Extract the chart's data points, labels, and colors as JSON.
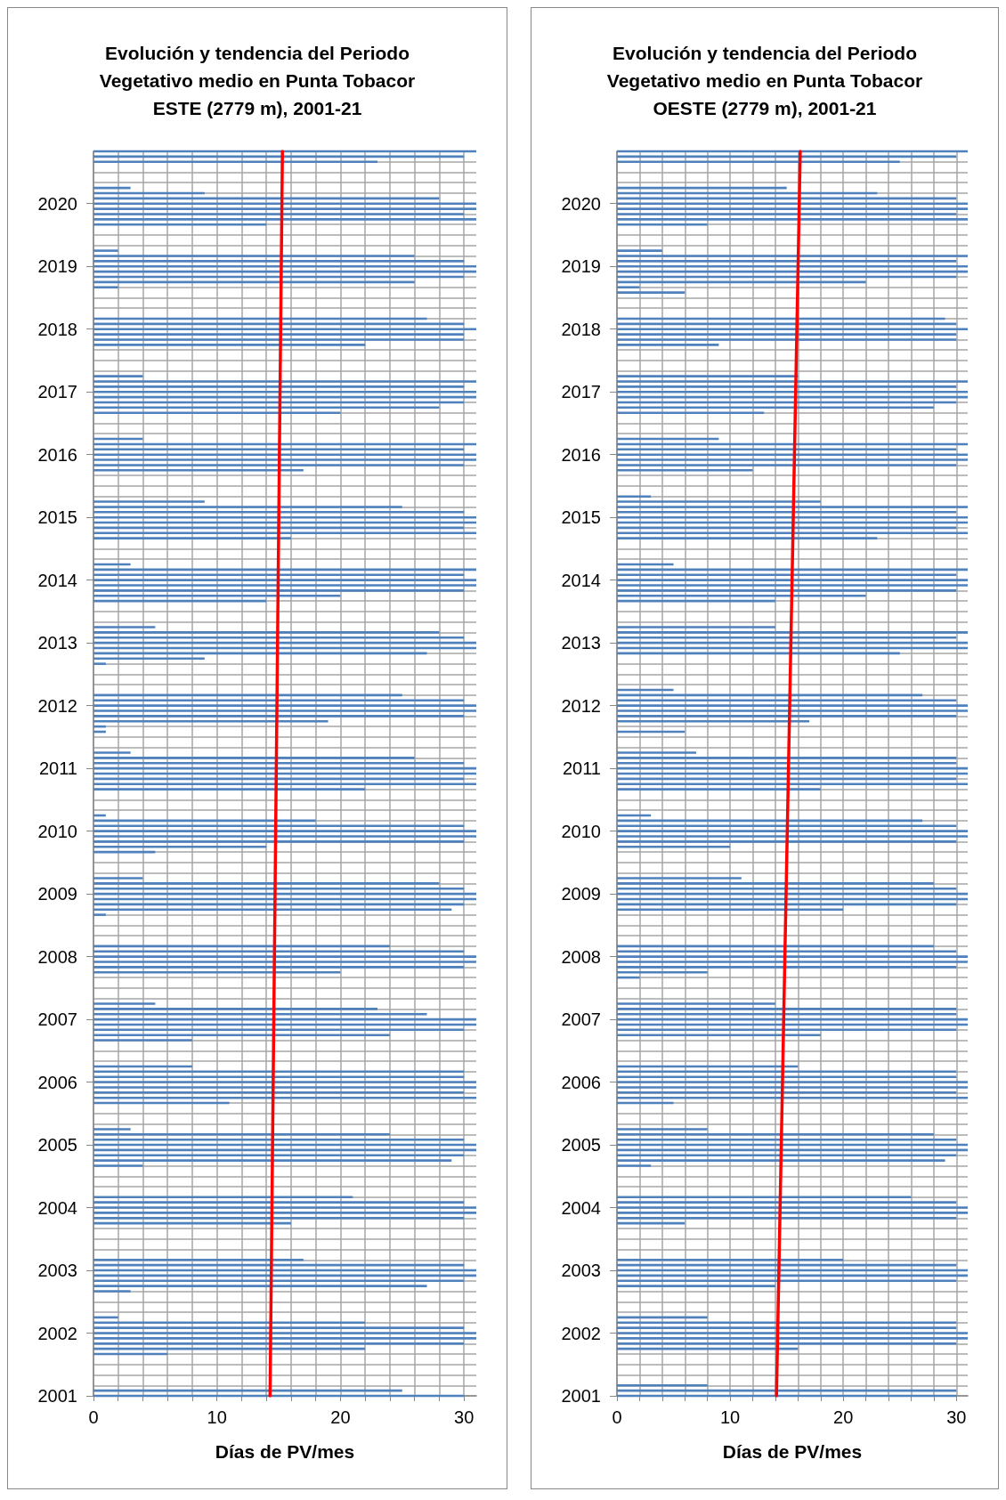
{
  "chart_data": [
    {
      "type": "bar",
      "orientation": "horizontal",
      "title": "Evolución y tendencia del Periodo\nVegetativo medio en Punta Tobacor\nESTE (2779 m), 2001-21",
      "xlabel": "Días de PV/mes",
      "grid": true,
      "xlim": [
        0,
        31
      ],
      "xticks": [
        0,
        {
          "value": 2,
          "label": null
        },
        {
          "value": 4,
          "label": null
        },
        {
          "value": 6,
          "label": null
        },
        {
          "value": 8,
          "label": null
        },
        10,
        {
          "value": 12,
          "label": null
        },
        {
          "value": 14,
          "label": null
        },
        {
          "value": 16,
          "label": null
        },
        {
          "value": 18,
          "label": null
        },
        20,
        {
          "value": 22,
          "label": null
        },
        {
          "value": 24,
          "label": null
        },
        {
          "value": 26,
          "label": null
        },
        {
          "value": 28,
          "label": null
        },
        30
      ],
      "categories": [
        null,
        null,
        null,
        null,
        null,
        null,
        null,
        null,
        null,
        null,
        "2020",
        null,
        null,
        null,
        null,
        null,
        null,
        null,
        null,
        null,
        null,
        null,
        "2019",
        null,
        null,
        null,
        null,
        null,
        null,
        null,
        null,
        null,
        null,
        null,
        "2018",
        null,
        null,
        null,
        null,
        null,
        null,
        null,
        null,
        null,
        null,
        null,
        "2017",
        null,
        null,
        null,
        null,
        null,
        null,
        null,
        null,
        null,
        null,
        null,
        "2016",
        null,
        null,
        null,
        null,
        null,
        null,
        null,
        null,
        null,
        null,
        null,
        "2015",
        null,
        null,
        null,
        null,
        null,
        null,
        null,
        null,
        null,
        null,
        null,
        "2014",
        null,
        null,
        null,
        null,
        null,
        null,
        null,
        null,
        null,
        null,
        null,
        "2013",
        null,
        null,
        null,
        null,
        null,
        null,
        null,
        null,
        null,
        null,
        null,
        "2012",
        null,
        null,
        null,
        null,
        null,
        null,
        null,
        null,
        null,
        null,
        null,
        "2011",
        null,
        null,
        null,
        null,
        null,
        null,
        null,
        null,
        null,
        null,
        null,
        "2010",
        null,
        null,
        null,
        null,
        null,
        null,
        null,
        null,
        null,
        null,
        null,
        "2009",
        null,
        null,
        null,
        null,
        null,
        null,
        null,
        null,
        null,
        null,
        null,
        "2008",
        null,
        null,
        null,
        null,
        null,
        null,
        null,
        null,
        null,
        null,
        null,
        "2007",
        null,
        null,
        null,
        null,
        null,
        null,
        null,
        null,
        null,
        null,
        null,
        "2006",
        null,
        null,
        null,
        null,
        null,
        null,
        null,
        null,
        null,
        null,
        null,
        "2005",
        null,
        null,
        null,
        null,
        null,
        null,
        null,
        null,
        null,
        null,
        null,
        "2004",
        null,
        null,
        null,
        null,
        null,
        null,
        null,
        null,
        null,
        null,
        null,
        "2003",
        null,
        null,
        null,
        null,
        null,
        null,
        null,
        null,
        null,
        null,
        null,
        "2002",
        null,
        null,
        null,
        null,
        null,
        null,
        null,
        null,
        null,
        null,
        null,
        "2001"
      ],
      "series": [
        {
          "color": "#4f81bd",
          "values": [
            31,
            30,
            23,
            0,
            0,
            0,
            0,
            3,
            9,
            28,
            31,
            31,
            30,
            31,
            14,
            0,
            0,
            0,
            0,
            2,
            26,
            30,
            31,
            31,
            30,
            26,
            2,
            0,
            0,
            0,
            0,
            0,
            27,
            30,
            31,
            30,
            30,
            22,
            0,
            0,
            0,
            0,
            0,
            4,
            31,
            30,
            31,
            31,
            30,
            28,
            20,
            0,
            0,
            0,
            0,
            4,
            31,
            30,
            31,
            31,
            30,
            17,
            0,
            0,
            0,
            0,
            0,
            9,
            25,
            30,
            31,
            31,
            30,
            31,
            16,
            0,
            0,
            0,
            0,
            3,
            31,
            30,
            31,
            31,
            30,
            20,
            14,
            0,
            0,
            0,
            0,
            5,
            28,
            30,
            31,
            31,
            27,
            9,
            1,
            0,
            0,
            0,
            0,
            0,
            25,
            30,
            31,
            31,
            30,
            19,
            1,
            1,
            0,
            0,
            0,
            3,
            26,
            30,
            31,
            31,
            30,
            31,
            22,
            0,
            0,
            0,
            0,
            1,
            18,
            30,
            31,
            31,
            30,
            14,
            5,
            0,
            0,
            0,
            0,
            4,
            28,
            30,
            31,
            31,
            30,
            29,
            1,
            0,
            0,
            0,
            0,
            0,
            24,
            30,
            31,
            31,
            30,
            20,
            0,
            0,
            0,
            0,
            0,
            5,
            23,
            27,
            31,
            31,
            30,
            24,
            8,
            0,
            0,
            0,
            0,
            8,
            30,
            30,
            31,
            31,
            30,
            31,
            11,
            0,
            0,
            0,
            0,
            3,
            24,
            30,
            31,
            31,
            30,
            29,
            4,
            0,
            0,
            0,
            0,
            0,
            21,
            30,
            31,
            31,
            30,
            16,
            0,
            0,
            0,
            0,
            0,
            0,
            17,
            30,
            31,
            31,
            30,
            27,
            3,
            0,
            0,
            0,
            0,
            2,
            22,
            30,
            31,
            31,
            30,
            22,
            6,
            0,
            0,
            0,
            0,
            0,
            0,
            25,
            30
          ]
        },
        {
          "type": "line",
          "color": "#ff0000",
          "values": [
            15.3,
            null,
            null,
            null,
            null,
            null,
            null,
            null,
            null,
            null,
            null,
            null,
            null,
            null,
            null,
            null,
            null,
            null,
            null,
            null,
            null,
            null,
            null,
            null,
            null,
            null,
            null,
            null,
            null,
            null,
            null,
            null,
            null,
            null,
            null,
            null,
            null,
            null,
            null,
            null,
            null,
            null,
            null,
            null,
            null,
            null,
            null,
            null,
            null,
            null,
            null,
            null,
            null,
            null,
            null,
            null,
            null,
            null,
            null,
            null,
            null,
            null,
            null,
            null,
            null,
            null,
            null,
            null,
            null,
            null,
            null,
            null,
            null,
            null,
            null,
            null,
            null,
            null,
            null,
            null,
            null,
            null,
            null,
            null,
            null,
            null,
            null,
            null,
            null,
            null,
            null,
            null,
            null,
            null,
            null,
            null,
            null,
            null,
            null,
            null,
            null,
            null,
            null,
            null,
            null,
            null,
            null,
            null,
            null,
            null,
            null,
            null,
            null,
            null,
            null,
            null,
            null,
            null,
            null,
            null,
            null,
            null,
            null,
            null,
            null,
            null,
            null,
            null,
            null,
            null,
            null,
            null,
            null,
            null,
            null,
            null,
            null,
            null,
            null,
            null,
            null,
            null,
            null,
            null,
            null,
            null,
            null,
            null,
            null,
            null,
            null,
            null,
            null,
            null,
            null,
            null,
            null,
            null,
            null,
            null,
            null,
            null,
            null,
            null,
            null,
            null,
            null,
            null,
            null,
            null,
            null,
            null,
            null,
            null,
            null,
            null,
            null,
            null,
            null,
            null,
            null,
            null,
            null,
            null,
            null,
            null,
            null,
            null,
            null,
            null,
            null,
            null,
            null,
            null,
            null,
            null,
            null,
            null,
            null,
            null,
            null,
            null,
            null,
            null,
            null,
            null,
            null,
            null,
            null,
            null,
            null,
            null,
            null,
            null,
            null,
            null,
            null,
            null,
            null,
            null,
            null,
            null,
            null,
            null,
            null,
            null,
            null,
            null,
            null,
            null,
            null,
            null,
            null,
            null,
            null,
            null,
            null,
            null,
            14.3
          ]
        }
      ],
      "marker": "none"
    },
    {
      "type": "bar",
      "orientation": "horizontal",
      "title": "Evolución y tendencia del Periodo\nVegetativo medio en Punta Tobacor\nOESTE (2779 m), 2001-21",
      "xlabel": "Días de PV/mes",
      "grid": true,
      "xlim": [
        0,
        31
      ],
      "xticks": [
        0,
        {
          "value": 2,
          "label": null
        },
        {
          "value": 4,
          "label": null
        },
        {
          "value": 6,
          "label": null
        },
        {
          "value": 8,
          "label": null
        },
        10,
        {
          "value": 12,
          "label": null
        },
        {
          "value": 14,
          "label": null
        },
        {
          "value": 16,
          "label": null
        },
        {
          "value": 18,
          "label": null
        },
        20,
        {
          "value": 22,
          "label": null
        },
        {
          "value": 24,
          "label": null
        },
        {
          "value": 26,
          "label": null
        },
        {
          "value": 28,
          "label": null
        },
        30
      ],
      "categories": [
        null,
        null,
        null,
        null,
        null,
        null,
        null,
        null,
        null,
        null,
        "2020",
        null,
        null,
        null,
        null,
        null,
        null,
        null,
        null,
        null,
        null,
        null,
        "2019",
        null,
        null,
        null,
        null,
        null,
        null,
        null,
        null,
        null,
        null,
        null,
        "2018",
        null,
        null,
        null,
        null,
        null,
        null,
        null,
        null,
        null,
        null,
        null,
        "2017",
        null,
        null,
        null,
        null,
        null,
        null,
        null,
        null,
        null,
        null,
        null,
        "2016",
        null,
        null,
        null,
        null,
        null,
        null,
        null,
        null,
        null,
        null,
        null,
        "2015",
        null,
        null,
        null,
        null,
        null,
        null,
        null,
        null,
        null,
        null,
        null,
        "2014",
        null,
        null,
        null,
        null,
        null,
        null,
        null,
        null,
        null,
        null,
        null,
        "2013",
        null,
        null,
        null,
        null,
        null,
        null,
        null,
        null,
        null,
        null,
        null,
        "2012",
        null,
        null,
        null,
        null,
        null,
        null,
        null,
        null,
        null,
        null,
        null,
        "2011",
        null,
        null,
        null,
        null,
        null,
        null,
        null,
        null,
        null,
        null,
        null,
        "2010",
        null,
        null,
        null,
        null,
        null,
        null,
        null,
        null,
        null,
        null,
        null,
        "2009",
        null,
        null,
        null,
        null,
        null,
        null,
        null,
        null,
        null,
        null,
        null,
        "2008",
        null,
        null,
        null,
        null,
        null,
        null,
        null,
        null,
        null,
        null,
        null,
        "2007",
        null,
        null,
        null,
        null,
        null,
        null,
        null,
        null,
        null,
        null,
        null,
        "2006",
        null,
        null,
        null,
        null,
        null,
        null,
        null,
        null,
        null,
        null,
        null,
        "2005",
        null,
        null,
        null,
        null,
        null,
        null,
        null,
        null,
        null,
        null,
        null,
        "2004",
        null,
        null,
        null,
        null,
        null,
        null,
        null,
        null,
        null,
        null,
        null,
        "2003",
        null,
        null,
        null,
        null,
        null,
        null,
        null,
        null,
        null,
        null,
        null,
        "2002",
        null,
        null,
        null,
        null,
        null,
        null,
        null,
        null,
        null,
        null,
        null,
        "2001"
      ],
      "series": [
        {
          "color": "#4f81bd",
          "values": [
            31,
            30,
            25,
            0,
            0,
            0,
            0,
            15,
            23,
            30,
            31,
            31,
            30,
            31,
            8,
            0,
            0,
            0,
            0,
            4,
            31,
            30,
            31,
            31,
            30,
            22,
            2,
            6,
            0,
            0,
            0,
            0,
            29,
            30,
            31,
            30,
            30,
            9,
            0,
            0,
            0,
            0,
            0,
            16,
            31,
            30,
            31,
            31,
            30,
            28,
            13,
            0,
            0,
            0,
            0,
            9,
            31,
            30,
            31,
            31,
            30,
            12,
            0,
            0,
            0,
            0,
            3,
            18,
            31,
            30,
            31,
            31,
            30,
            31,
            23,
            0,
            0,
            0,
            0,
            5,
            31,
            30,
            31,
            31,
            30,
            22,
            14,
            0,
            0,
            0,
            0,
            14,
            31,
            30,
            31,
            31,
            25,
            0,
            0,
            0,
            0,
            0,
            0,
            5,
            27,
            30,
            31,
            31,
            30,
            17,
            0,
            6,
            0,
            0,
            0,
            7,
            30,
            30,
            31,
            31,
            30,
            31,
            18,
            0,
            0,
            0,
            0,
            3,
            27,
            30,
            31,
            31,
            30,
            10,
            0,
            0,
            0,
            0,
            0,
            11,
            28,
            30,
            31,
            31,
            30,
            20,
            0,
            0,
            0,
            0,
            0,
            0,
            28,
            30,
            31,
            31,
            30,
            8,
            2,
            0,
            0,
            0,
            0,
            14,
            30,
            30,
            31,
            31,
            30,
            18,
            0,
            0,
            0,
            0,
            0,
            16,
            30,
            30,
            31,
            31,
            30,
            31,
            5,
            0,
            0,
            0,
            0,
            8,
            28,
            30,
            31,
            31,
            30,
            29,
            3,
            0,
            0,
            0,
            0,
            0,
            26,
            30,
            31,
            31,
            30,
            6,
            0,
            0,
            0,
            0,
            0,
            0,
            20,
            30,
            31,
            31,
            30,
            14,
            0,
            0,
            0,
            0,
            0,
            8,
            30,
            30,
            31,
            31,
            30,
            16,
            0,
            0,
            0,
            0,
            0,
            0,
            8,
            30,
            30
          ]
        },
        {
          "type": "line",
          "color": "#ff0000",
          "values": [
            16.2,
            null,
            null,
            null,
            null,
            null,
            null,
            null,
            null,
            null,
            null,
            null,
            null,
            null,
            null,
            null,
            null,
            null,
            null,
            null,
            null,
            null,
            null,
            null,
            null,
            null,
            null,
            null,
            null,
            null,
            null,
            null,
            null,
            null,
            null,
            null,
            null,
            null,
            null,
            null,
            null,
            null,
            null,
            null,
            null,
            null,
            null,
            null,
            null,
            null,
            null,
            null,
            null,
            null,
            null,
            null,
            null,
            null,
            null,
            null,
            null,
            null,
            null,
            null,
            null,
            null,
            null,
            null,
            null,
            null,
            null,
            null,
            null,
            null,
            null,
            null,
            null,
            null,
            null,
            null,
            null,
            null,
            null,
            null,
            null,
            null,
            null,
            null,
            null,
            null,
            null,
            null,
            null,
            null,
            null,
            null,
            null,
            null,
            null,
            null,
            null,
            null,
            null,
            null,
            null,
            null,
            null,
            null,
            null,
            null,
            null,
            null,
            null,
            null,
            null,
            null,
            null,
            null,
            null,
            null,
            null,
            null,
            null,
            null,
            null,
            null,
            null,
            null,
            null,
            null,
            null,
            null,
            null,
            null,
            null,
            null,
            null,
            null,
            null,
            null,
            null,
            null,
            null,
            null,
            null,
            null,
            null,
            null,
            null,
            null,
            null,
            null,
            null,
            null,
            null,
            null,
            null,
            null,
            null,
            null,
            null,
            null,
            null,
            null,
            null,
            null,
            null,
            null,
            null,
            null,
            null,
            null,
            null,
            null,
            null,
            null,
            null,
            null,
            null,
            null,
            null,
            null,
            null,
            null,
            null,
            null,
            null,
            null,
            null,
            null,
            null,
            null,
            null,
            null,
            null,
            null,
            null,
            null,
            null,
            null,
            null,
            null,
            null,
            null,
            null,
            null,
            null,
            null,
            null,
            null,
            null,
            null,
            null,
            null,
            null,
            null,
            null,
            null,
            null,
            null,
            null,
            null,
            null,
            null,
            null,
            null,
            null,
            null,
            null,
            null,
            null,
            null,
            null,
            null,
            null,
            null,
            null,
            null,
            14.1
          ]
        }
      ],
      "marker": "none"
    }
  ]
}
